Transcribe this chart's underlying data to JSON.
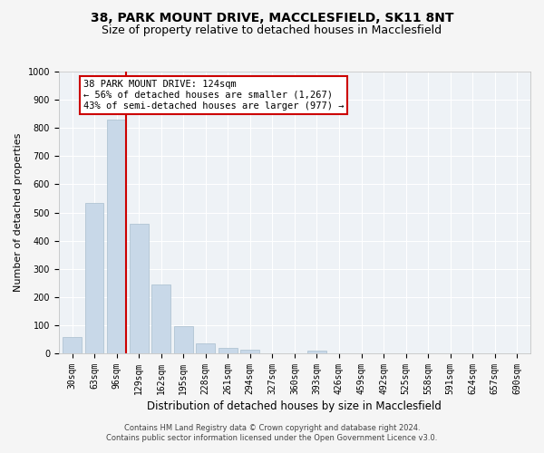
{
  "title_line1": "38, PARK MOUNT DRIVE, MACCLESFIELD, SK11 8NT",
  "title_line2": "Size of property relative to detached houses in Macclesfield",
  "xlabel": "Distribution of detached houses by size in Macclesfield",
  "ylabel": "Number of detached properties",
  "bar_color": "#c8d8e8",
  "bar_edge_color": "#a8bece",
  "highlight_color": "#cc0000",
  "background_color": "#eef2f6",
  "grid_color": "#ffffff",
  "bins": [
    "30sqm",
    "63sqm",
    "96sqm",
    "129sqm",
    "162sqm",
    "195sqm",
    "228sqm",
    "261sqm",
    "294sqm",
    "327sqm",
    "360sqm",
    "393sqm",
    "426sqm",
    "459sqm",
    "492sqm",
    "525sqm",
    "558sqm",
    "591sqm",
    "624sqm",
    "657sqm",
    "690sqm"
  ],
  "values": [
    57,
    535,
    830,
    460,
    244,
    97,
    36,
    20,
    12,
    0,
    0,
    10,
    0,
    0,
    0,
    0,
    0,
    0,
    0,
    0,
    0
  ],
  "highlight_bin_index": 2,
  "annotation_line1": "38 PARK MOUNT DRIVE: 124sqm",
  "annotation_line2": "← 56% of detached houses are smaller (1,267)",
  "annotation_line3": "43% of semi-detached houses are larger (977) →",
  "annotation_box_color": "#ffffff",
  "annotation_box_edge": "#cc0000",
  "ylim": [
    0,
    1000
  ],
  "yticks": [
    0,
    100,
    200,
    300,
    400,
    500,
    600,
    700,
    800,
    900,
    1000
  ],
  "footer_line1": "Contains HM Land Registry data © Crown copyright and database right 2024.",
  "footer_line2": "Contains public sector information licensed under the Open Government Licence v3.0.",
  "title_fontsize": 10,
  "subtitle_fontsize": 9,
  "tick_fontsize": 7,
  "ylabel_fontsize": 8,
  "xlabel_fontsize": 8.5,
  "annotation_fontsize": 7.5,
  "footer_fontsize": 6
}
